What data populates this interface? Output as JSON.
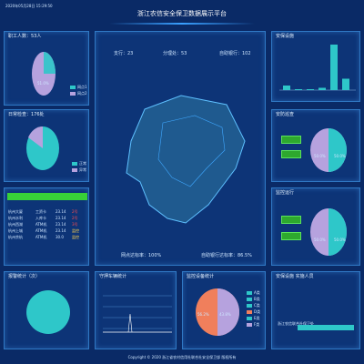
{
  "header": {
    "datetime": "2020年05月28日 15:29:50",
    "title": "浙江农信安全保卫数据展示平台"
  },
  "left": {
    "p1": {
      "title": "职工人数：53人",
      "percent_label": "51.0%",
      "legend": [
        {
          "label": "网点1",
          "color": "#2ec7c9"
        },
        {
          "label": "网点2",
          "color": "#b6a2de"
        }
      ]
    },
    "p2": {
      "title": "日常检查：176处",
      "legend": [
        {
          "label": "正常",
          "color": "#2ec7c9"
        },
        {
          "label": "异常",
          "color": "#b6a2de"
        }
      ]
    },
    "p3": {
      "bar_label": "",
      "rows": [
        {
          "c1": "杭州大厦",
          "c2": "工资卡",
          "c3": "23.14",
          "c4": "2号"
        },
        {
          "c1": "杭州水利",
          "c2": "入库卡",
          "c3": "23.14",
          "c4": "2号"
        },
        {
          "c1": "杭州西湖",
          "c2": "ATM机",
          "c3": "23.14",
          "c4": "3号"
        },
        {
          "c1": "杭州上城",
          "c2": "ATM机",
          "c3": "23.14",
          "c4": "监控"
        },
        {
          "c1": "杭州余杭",
          "c2": "ATM机",
          "c3": "30.0",
          "c4": "监控"
        }
      ]
    },
    "p4": {
      "title": "报警统计（次）"
    }
  },
  "center": {
    "stats": {
      "main": "支行：23",
      "branch": "分理处：53",
      "self": "自助银行：102"
    },
    "footer": {
      "a": "网点达标率：100%",
      "b": "自助银行达标率：86.5%"
    }
  },
  "bottom": {
    "p5": {
      "title": "守押车辆统计"
    },
    "p6": {
      "title": "监控设备统计",
      "left": "56.2%",
      "right": "43.8%",
      "legend": [
        "A类",
        "B类",
        "C类",
        "D类",
        "E类",
        "F类"
      ]
    },
    "p7": {
      "title": "安保设施  实施人员",
      "item": "浙江农信联合社保卫处"
    }
  },
  "right": {
    "p8": {
      "title": "安保设施"
    },
    "p9": {
      "title": "安防巡查",
      "left": "50.0%",
      "right": "50.0%"
    },
    "p10": {
      "title": "监控运行",
      "left": "50.0%",
      "right": "50.0%"
    }
  },
  "footer_text": "Copyright © 2020 浙江省农村信用社联合社安全保卫部 版权所有",
  "chart_data": [
    {
      "type": "pie",
      "values": [
        49,
        51
      ],
      "labels": [
        "网点1",
        "网点2"
      ]
    },
    {
      "type": "pie",
      "values": [
        20,
        80
      ],
      "labels": [
        "正常",
        "异常"
      ]
    },
    {
      "type": "bar",
      "categories": [
        "A",
        "B",
        "C",
        "D",
        "E",
        "F"
      ],
      "values": [
        10,
        2,
        2,
        5,
        100,
        25
      ]
    },
    {
      "type": "pie",
      "values": [
        50,
        50
      ]
    },
    {
      "type": "pie",
      "values": [
        50,
        50
      ]
    },
    {
      "type": "pie",
      "values": [
        20,
        80
      ]
    },
    {
      "type": "pie",
      "values": [
        56.2,
        43.8
      ]
    }
  ],
  "colors": {
    "accent": "#2f78c4",
    "teal": "#2ec7c9",
    "purple": "#b6a2de",
    "green": "#2ea82e"
  }
}
